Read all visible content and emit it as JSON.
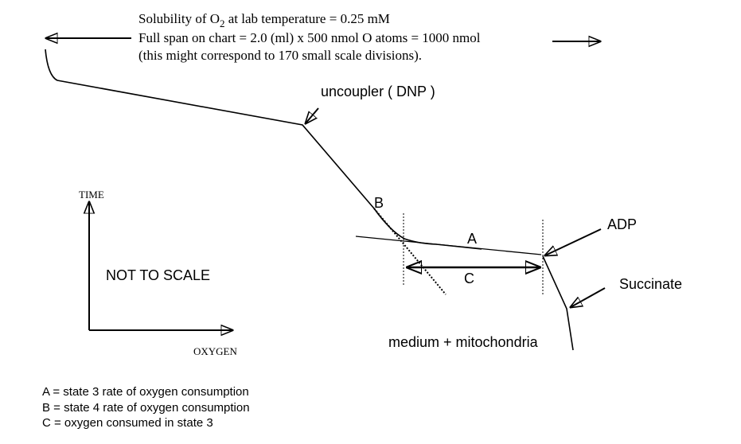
{
  "header": {
    "solubility": {
      "before": "Solubility of O",
      "subscript": "2",
      "after": " at lab temperature = 0.25 mM"
    },
    "span": "Full span on chart = 2.0 (ml) x 500 nmol O atoms = 1000 nmol",
    "note": "(this might correspond to 170 small scale divisions)."
  },
  "annotations": {
    "uncoupler": "uncoupler ( DNP )",
    "b": "B",
    "a": "A",
    "c": "C",
    "adp": "ADP",
    "succinate": "Succinate",
    "medium": "medium + mitochondria"
  },
  "axes": {
    "time": "TIME",
    "oxygen": "OXYGEN",
    "scale_note": "NOT TO SCALE"
  },
  "legend": [
    "A = state 3 rate of oxygen consumption",
    "B = state 4 rate of oxygen consumption",
    "C = oxygen consumed in state 3"
  ]
}
